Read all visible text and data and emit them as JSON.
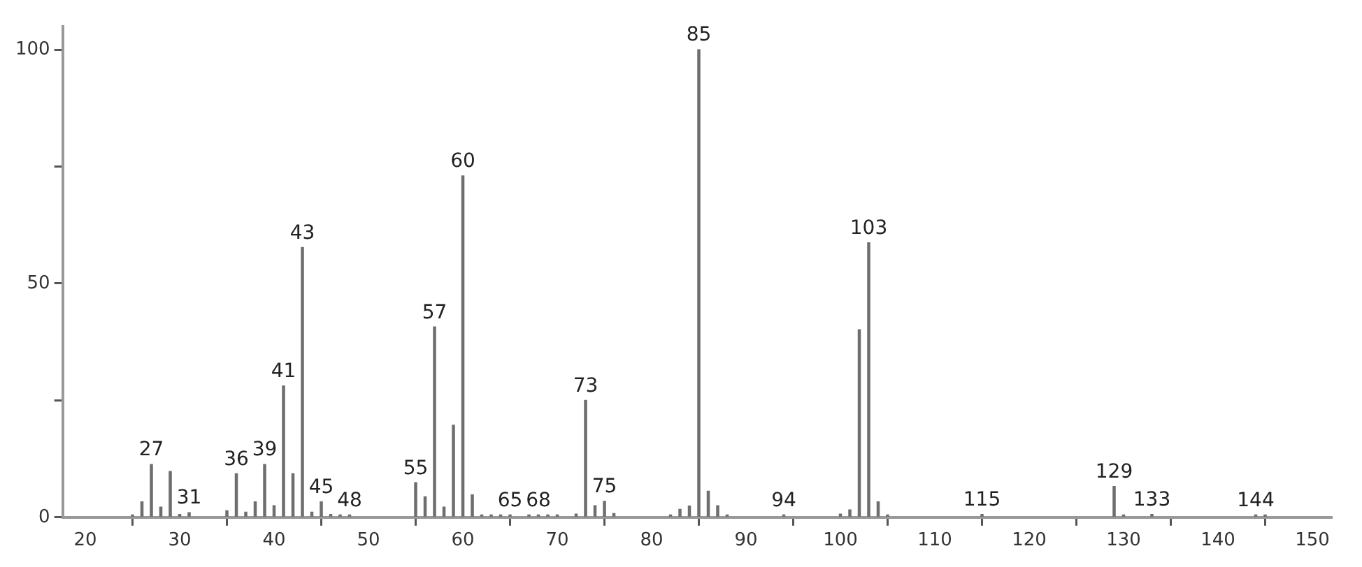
{
  "chart_data": {
    "type": "bar",
    "color": "#6e6e6e",
    "x": [
      25,
      26,
      27,
      28,
      29,
      30,
      31,
      35,
      36,
      37,
      38,
      39,
      40,
      41,
      42,
      43,
      44,
      45,
      46,
      47,
      48,
      55,
      56,
      57,
      58,
      59,
      60,
      61,
      62,
      63,
      64,
      65,
      67,
      68,
      69,
      70,
      72,
      73,
      74,
      75,
      76,
      82,
      83,
      84,
      85,
      86,
      87,
      88,
      94,
      100,
      101,
      102,
      103,
      104,
      105,
      115,
      129,
      130,
      133,
      144,
      145
    ],
    "values": [
      0.5,
      3.3,
      11.3,
      2.2,
      9.8,
      0.6,
      1,
      1.4,
      9.3,
      1.1,
      3.3,
      11.3,
      2.5,
      28.1,
      9.3,
      57.7,
      1.1,
      3.3,
      0.6,
      0.5,
      0.5,
      7.4,
      4.4,
      40.7,
      2.2,
      19.7,
      73,
      4.8,
      0.5,
      0.5,
      0.5,
      0.5,
      0.5,
      0.5,
      0.5,
      0.5,
      0.7,
      25,
      2.5,
      3.4,
      0.8,
      0.5,
      1.7,
      2.4,
      100,
      5.6,
      2.5,
      0.5,
      0.5,
      0.7,
      1.6,
      40.1,
      58.7,
      3.3,
      0.5,
      0.6,
      6.6,
      0.5,
      0.6,
      0.5,
      0.5
    ],
    "xlim": [
      17.6,
      152
    ],
    "xticks": [
      20,
      30,
      40,
      50,
      60,
      70,
      80,
      90,
      100,
      110,
      120,
      130,
      140,
      150
    ],
    "ylim": [
      0,
      105
    ],
    "yticks": [
      0,
      {
        "value": 25,
        "label": null
      },
      50,
      {
        "value": 75,
        "label": null
      },
      100
    ],
    "annotations": [
      {
        "text": "27",
        "x": 27,
        "y": 11.3
      },
      {
        "text": "31",
        "x": 31,
        "y": 1
      },
      {
        "text": "36",
        "x": 36,
        "y": 9.3
      },
      {
        "text": "39",
        "x": 39,
        "y": 11.3
      },
      {
        "text": "41",
        "x": 41,
        "y": 28.1
      },
      {
        "text": "43",
        "x": 43,
        "y": 57.7
      },
      {
        "text": "45",
        "x": 45,
        "y": 3.3
      },
      {
        "text": "48",
        "x": 48,
        "y": 0.5
      },
      {
        "text": "55",
        "x": 55,
        "y": 7.4
      },
      {
        "text": "57",
        "x": 57,
        "y": 40.7
      },
      {
        "text": "60",
        "x": 60,
        "y": 73
      },
      {
        "text": "65",
        "x": 65,
        "y": 0.5
      },
      {
        "text": "68",
        "x": 68,
        "y": 0.5
      },
      {
        "text": "73",
        "x": 73,
        "y": 25
      },
      {
        "text": "75",
        "x": 75,
        "y": 3.4
      },
      {
        "text": "85",
        "x": 85,
        "y": 100
      },
      {
        "text": "94",
        "x": 94,
        "y": 0.5
      },
      {
        "text": "103",
        "x": 103,
        "y": 58.7
      },
      {
        "text": "115",
        "x": 115,
        "y": 0.6
      },
      {
        "text": "129",
        "x": 129,
        "y": 6.6
      },
      {
        "text": "133",
        "x": 133,
        "y": 0.6
      },
      {
        "text": "144",
        "x": 144,
        "y": 0.5
      }
    ]
  }
}
